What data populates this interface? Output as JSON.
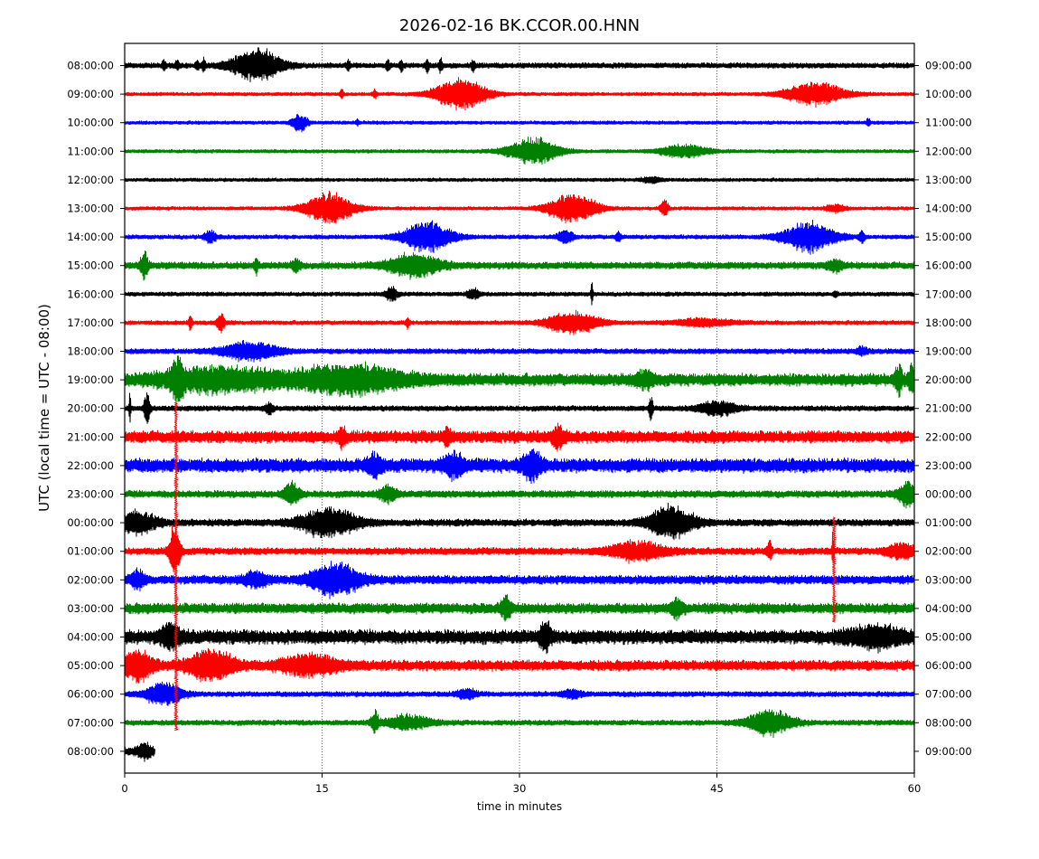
{
  "chart_data": {
    "type": "line",
    "title": "2026-02-16 BK.CCOR.00.HNN",
    "xlabel": "time in minutes",
    "ylabel": "UTC (local time = UTC - 08:00)",
    "xlim": [
      0,
      60
    ],
    "x_ticks": [
      "0",
      "15",
      "30",
      "45",
      "60"
    ],
    "x_tick_values": [
      0,
      15,
      30,
      45,
      60
    ],
    "grid_x": [
      15,
      30,
      45
    ],
    "colors": [
      "#000000",
      "#ff0000",
      "#0000ff",
      "#008000"
    ],
    "rows": [
      {
        "left": "08:00:00",
        "right": "09:00:00",
        "color": "#000000",
        "end": 60,
        "noise": 0.15,
        "events": [
          [
            0.9,
            10,
            1.3
          ],
          [
            0.35,
            6,
            0.1
          ],
          [
            0.3,
            3,
            0.1
          ],
          [
            0.3,
            4,
            0.1
          ],
          [
            0.3,
            5.5,
            0.1
          ],
          [
            0.25,
            17,
            0.1
          ],
          [
            0.3,
            20,
            0.1
          ],
          [
            0.3,
            21,
            0.1
          ],
          [
            0.35,
            23,
            0.1
          ],
          [
            0.4,
            24,
            0.1
          ],
          [
            0.35,
            26.5,
            0.1
          ]
        ]
      },
      {
        "left": "09:00:00",
        "right": "10:00:00",
        "color": "#ff0000",
        "end": 60,
        "noise": 0.1,
        "events": [
          [
            0.85,
            25.5,
            1.4
          ],
          [
            0.6,
            52.5,
            1.6
          ],
          [
            0.3,
            19,
            0.1
          ],
          [
            0.25,
            16.5,
            0.1
          ]
        ]
      },
      {
        "left": "10:00:00",
        "right": "11:00:00",
        "color": "#0000ff",
        "end": 60,
        "noise": 0.1,
        "events": [
          [
            0.5,
            13.3,
            0.4
          ],
          [
            0.25,
            56.5,
            0.1
          ],
          [
            0.15,
            17.7,
            0.1
          ]
        ]
      },
      {
        "left": "11:00:00",
        "right": "12:00:00",
        "color": "#008000",
        "end": 60,
        "noise": 0.1,
        "events": [
          [
            0.7,
            31,
            1.4
          ],
          [
            0.35,
            42.5,
            1.3
          ]
        ]
      },
      {
        "left": "12:00:00",
        "right": "13:00:00",
        "color": "#000000",
        "end": 60,
        "noise": 0.1,
        "events": [
          [
            0.15,
            40,
            0.5
          ]
        ]
      },
      {
        "left": "13:00:00",
        "right": "14:00:00",
        "color": "#ff0000",
        "end": 60,
        "noise": 0.1,
        "events": [
          [
            0.85,
            15.5,
            1.3
          ],
          [
            0.8,
            34,
            1.3
          ],
          [
            0.5,
            41,
            0.2
          ],
          [
            0.2,
            54,
            0.5
          ]
        ]
      },
      {
        "left": "14:00:00",
        "right": "15:00:00",
        "color": "#0000ff",
        "end": 60,
        "noise": 0.12,
        "events": [
          [
            0.85,
            23,
            1.3
          ],
          [
            0.85,
            52,
            1.4
          ],
          [
            0.4,
            33.5,
            0.4
          ],
          [
            0.35,
            6.5,
            0.3
          ],
          [
            0.3,
            56,
            0.15
          ],
          [
            0.3,
            37.5,
            0.15
          ]
        ]
      },
      {
        "left": "15:00:00",
        "right": "16:00:00",
        "color": "#008000",
        "end": 60,
        "noise": 0.2,
        "events": [
          [
            0.6,
            22,
            1.4
          ],
          [
            0.7,
            1.5,
            0.2
          ],
          [
            0.4,
            10,
            0.1
          ],
          [
            0.35,
            13,
            0.2
          ],
          [
            0.3,
            54,
            0.4
          ]
        ]
      },
      {
        "left": "16:00:00",
        "right": "17:00:00",
        "color": "#000000",
        "end": 60,
        "noise": 0.12,
        "events": [
          [
            0.4,
            20.3,
            0.3
          ],
          [
            1.0,
            35.5,
            0.05
          ],
          [
            0.3,
            26.5,
            0.3
          ],
          [
            0.2,
            54,
            0.1
          ]
        ]
      },
      {
        "left": "17:00:00",
        "right": "18:00:00",
        "color": "#ff0000",
        "end": 60,
        "noise": 0.12,
        "events": [
          [
            0.6,
            34,
            1.4
          ],
          [
            0.55,
            7.3,
            0.2
          ],
          [
            0.5,
            5,
            0.1
          ],
          [
            0.3,
            21.5,
            0.1
          ],
          [
            0.2,
            44,
            1.5
          ]
        ]
      },
      {
        "left": "18:00:00",
        "right": "19:00:00",
        "color": "#0000ff",
        "end": 60,
        "noise": 0.15,
        "events": [
          [
            0.5,
            9.5,
            1.5
          ],
          [
            0.2,
            56,
            0.3
          ]
        ]
      },
      {
        "left": "19:00:00",
        "right": "20:00:00",
        "color": "#008000",
        "end": 60,
        "noise": 0.35,
        "events": [
          [
            0.9,
            4,
            0.3
          ],
          [
            0.6,
            7,
            3
          ],
          [
            0.7,
            17,
            3
          ],
          [
            0.4,
            39.5,
            0.5
          ],
          [
            0.8,
            58.8,
            0.2
          ],
          [
            0.7,
            59.8,
            0.2
          ]
        ]
      },
      {
        "left": "20:00:00",
        "right": "21:00:00",
        "color": "#000000",
        "end": 60,
        "noise": 0.15,
        "events": [
          [
            0.9,
            1.7,
            0.15
          ],
          [
            0.9,
            0.4,
            0.05
          ],
          [
            0.8,
            40,
            0.1
          ],
          [
            0.4,
            45,
            1
          ],
          [
            0.3,
            11,
            0.2
          ]
        ]
      },
      {
        "left": "21:00:00",
        "right": "22:00:00",
        "color": "#ff0000",
        "end": 60,
        "noise": 0.35,
        "events": [
          [
            0.6,
            33,
            0.3
          ],
          [
            0.5,
            16.5,
            0.2
          ],
          [
            0.4,
            24.5,
            0.2
          ]
        ]
      },
      {
        "left": "22:00:00",
        "right": "23:00:00",
        "color": "#0000ff",
        "end": 60,
        "noise": 0.4,
        "events": [
          [
            0.7,
            31,
            0.5
          ],
          [
            0.6,
            25,
            0.5
          ],
          [
            0.5,
            19,
            0.4
          ]
        ]
      },
      {
        "left": "23:00:00",
        "right": "00:00:00",
        "color": "#008000",
        "end": 60,
        "noise": 0.2,
        "events": [
          [
            0.6,
            12.7,
            0.4
          ],
          [
            0.7,
            59.5,
            0.5
          ],
          [
            0.4,
            20,
            0.5
          ]
        ]
      },
      {
        "left": "00:00:00",
        "right": "01:00:00",
        "color": "#000000",
        "end": 60,
        "noise": 0.2,
        "events": [
          [
            0.9,
            41.5,
            1.2
          ],
          [
            0.8,
            15.5,
            1.5
          ],
          [
            0.6,
            1,
            1
          ]
        ]
      },
      {
        "left": "01:00:00",
        "right": "02:00:00",
        "color": "#ff0000",
        "end": 60,
        "noise": 0.2,
        "events": [
          [
            1.4,
            3.8,
            0.3
          ],
          [
            1.0,
            53.8,
            0.05
          ],
          [
            0.5,
            49,
            0.15
          ],
          [
            0.5,
            39,
            1.5
          ],
          [
            0.4,
            59,
            0.8
          ]
        ]
      },
      {
        "left": "02:00:00",
        "right": "03:00:00",
        "color": "#0000ff",
        "end": 60,
        "noise": 0.25,
        "events": [
          [
            0.9,
            16,
            1.3
          ],
          [
            0.5,
            1,
            0.4
          ],
          [
            0.4,
            10,
            0.6
          ]
        ]
      },
      {
        "left": "03:00:00",
        "right": "04:00:00",
        "color": "#008000",
        "end": 60,
        "noise": 0.3,
        "events": [
          [
            0.5,
            29,
            0.3
          ],
          [
            0.5,
            42,
            0.3
          ]
        ]
      },
      {
        "left": "04:00:00",
        "right": "05:00:00",
        "color": "#000000",
        "end": 60,
        "noise": 0.4,
        "events": [
          [
            0.7,
            32,
            0.3
          ],
          [
            0.5,
            57,
            1.5
          ],
          [
            0.6,
            3.5,
            0.5
          ]
        ]
      },
      {
        "left": "05:00:00",
        "right": "06:00:00",
        "color": "#ff0000",
        "end": 60,
        "noise": 0.3,
        "events": [
          [
            0.8,
            1,
            0.8
          ],
          [
            0.8,
            6.5,
            1.2
          ],
          [
            0.5,
            14,
            1.5
          ]
        ]
      },
      {
        "left": "06:00:00",
        "right": "07:00:00",
        "color": "#0000ff",
        "end": 60,
        "noise": 0.15,
        "events": [
          [
            0.6,
            3,
            1
          ],
          [
            0.3,
            26,
            0.5
          ],
          [
            0.25,
            34,
            0.5
          ]
        ]
      },
      {
        "left": "07:00:00",
        "right": "08:00:00",
        "color": "#008000",
        "end": 60,
        "noise": 0.15,
        "events": [
          [
            0.7,
            49,
            1.2
          ],
          [
            0.6,
            19,
            0.2
          ],
          [
            0.4,
            21.5,
            1.2
          ]
        ]
      },
      {
        "left": "08:00:00",
        "right": "09:00:00",
        "color": "#000000",
        "end": 2.3,
        "noise": 0.25,
        "events": [
          [
            0.4,
            1.5,
            0.3
          ]
        ]
      }
    ],
    "vertical_spikes": [
      {
        "x": 3.9,
        "color": "#ff0000",
        "y_from": 11.8,
        "y_to": 23.3,
        "note": "red"
      },
      {
        "x": 53.9,
        "color": "#ff0000",
        "y_from": 15.8,
        "y_to": 19.5,
        "note": "red"
      }
    ]
  }
}
